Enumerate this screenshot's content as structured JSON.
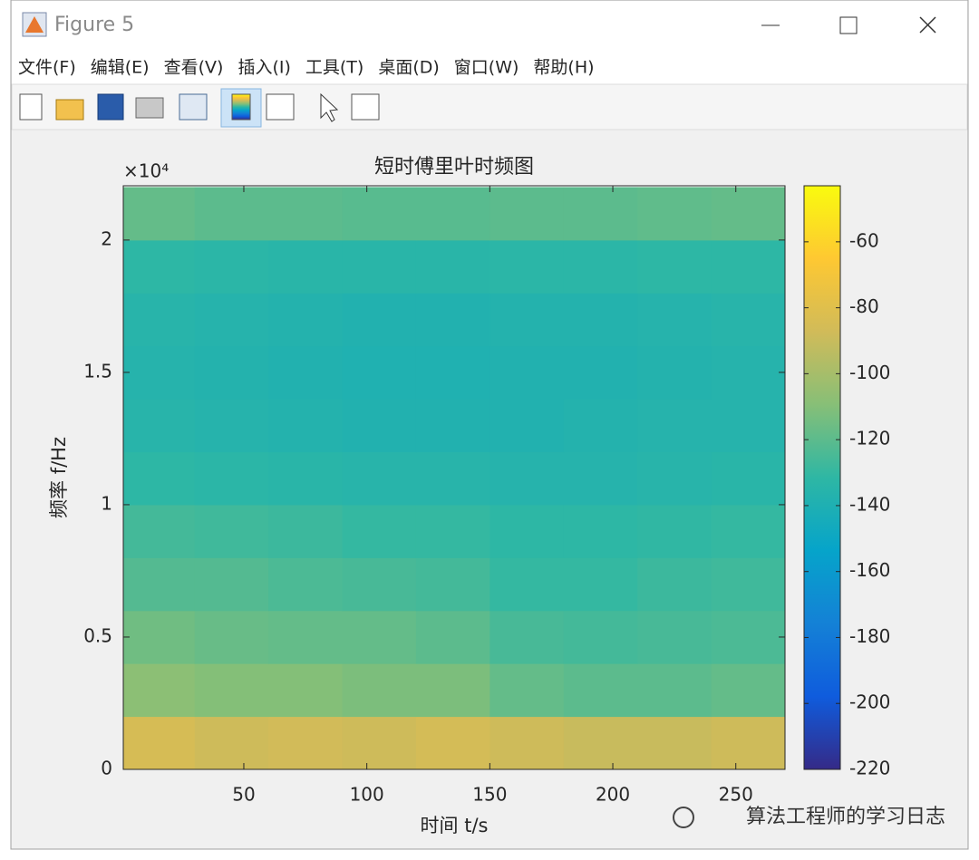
{
  "window": {
    "title": "Figure 5",
    "menu": [
      "文件(F)",
      "编辑(E)",
      "查看(V)",
      "插入(I)",
      "工具(T)",
      "桌面(D)",
      "窗口(W)",
      "帮助(H)"
    ]
  },
  "chart_data": {
    "type": "heatmap",
    "title": "短时傅里叶时频图",
    "xlabel": "时间 t/s",
    "ylabel": "频率 f/Hz",
    "y_multiplier": "×10⁴",
    "xlim": [
      1,
      270
    ],
    "xticks": [
      50,
      100,
      150,
      200,
      250
    ],
    "ylim": [
      0,
      22050
    ],
    "yticks": [
      0,
      {
        "value": 5000,
        "label": "0.5"
      },
      {
        "value": 10000,
        "label": "1"
      },
      {
        "value": 15000,
        "label": "1.5"
      },
      {
        "value": 20000,
        "label": "2"
      }
    ],
    "x": [
      15,
      45,
      75,
      105,
      135,
      165,
      195,
      225,
      255
    ],
    "y": [
      1000,
      3000,
      5000,
      7000,
      9000,
      11000,
      13000,
      15000,
      17000,
      19000,
      21000
    ],
    "z": [
      [
        -85,
        -88,
        -87,
        -88,
        -86,
        -88,
        -90,
        -90,
        -88
      ],
      [
        -108,
        -110,
        -110,
        -112,
        -112,
        -118,
        -120,
        -120,
        -118
      ],
      [
        -115,
        -117,
        -118,
        -118,
        -120,
        -125,
        -126,
        -125,
        -124
      ],
      [
        -122,
        -122,
        -124,
        -125,
        -126,
        -130,
        -130,
        -128,
        -127
      ],
      [
        -126,
        -127,
        -128,
        -130,
        -130,
        -132,
        -132,
        -131,
        -130
      ],
      [
        -132,
        -133,
        -134,
        -135,
        -135,
        -136,
        -136,
        -135,
        -134
      ],
      [
        -135,
        -136,
        -137,
        -138,
        -138,
        -138,
        -137,
        -136,
        -136
      ],
      [
        -136,
        -137,
        -138,
        -139,
        -139,
        -138,
        -138,
        -137,
        -136
      ],
      [
        -135,
        -136,
        -137,
        -138,
        -138,
        -137,
        -137,
        -136,
        -135
      ],
      [
        -132,
        -133,
        -134,
        -134,
        -134,
        -133,
        -133,
        -132,
        -132
      ],
      [
        -118,
        -120,
        -120,
        -121,
        -121,
        -120,
        -120,
        -119,
        -118
      ]
    ],
    "colormap": "parula",
    "clim": [
      -220,
      -43
    ],
    "cticks": [
      -220,
      -200,
      -180,
      -160,
      -140,
      -120,
      -100,
      -80,
      -60
    ]
  },
  "watermark": "算法工程师的学习日志"
}
